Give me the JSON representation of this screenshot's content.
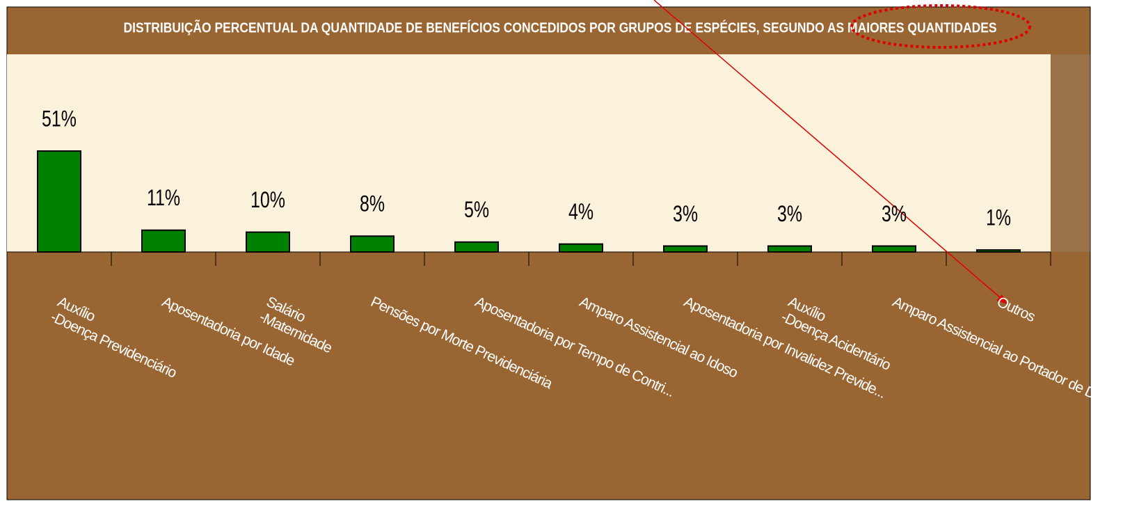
{
  "chart_data": {
    "type": "bar",
    "title": "DISTRIBUIÇÃO PERCENTUAL DA QUANTIDADE DE BENEFÍCIOS CONCEDIDOS POR GRUPOS DE ESPÉCIES, SEGUNDO AS MAIORES QUANTIDADES",
    "categories": [
      "Auxílio\n-Doença Previdenciário",
      "Aposentadoria por Idade",
      "Salário\n-Maternidade",
      "Pensões por Morte Previdenciária",
      "Aposentadoria por Tempo de Contri...",
      "Amparo Assistencial ao Idoso",
      "Aposentadoria por Invalidez Previde...",
      "Auxílio\n-Doença Acidentário",
      "Amparo Assistencial ao Portador de D...",
      "Outros"
    ],
    "values": [
      51,
      11,
      10,
      8,
      5,
      4,
      3,
      3,
      3,
      1
    ],
    "value_labels": [
      "51%",
      "11%",
      "10%",
      "8%",
      "5%",
      "4%",
      "3%",
      "3%",
      "3%",
      "1%"
    ],
    "color": "#008000"
  }
}
